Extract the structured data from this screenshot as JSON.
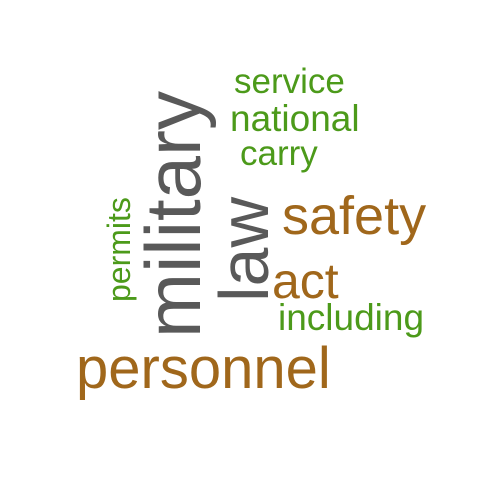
{
  "words": [
    {
      "text": "military",
      "color": "#595959",
      "orientation": "vertical"
    },
    {
      "text": "law",
      "color": "#595959",
      "orientation": "vertical"
    },
    {
      "text": "personnel",
      "color": "#a0671b",
      "orientation": "horizontal"
    },
    {
      "text": "safety",
      "color": "#a0671b",
      "orientation": "horizontal"
    },
    {
      "text": "act",
      "color": "#a0671b",
      "orientation": "horizontal"
    },
    {
      "text": "service",
      "color": "#4c9a1a",
      "orientation": "horizontal"
    },
    {
      "text": "national",
      "color": "#4c9a1a",
      "orientation": "horizontal"
    },
    {
      "text": "carry",
      "color": "#4c9a1a",
      "orientation": "horizontal"
    },
    {
      "text": "including",
      "color": "#4c9a1a",
      "orientation": "horizontal"
    },
    {
      "text": "permits",
      "color": "#4c9a1a",
      "orientation": "vertical"
    }
  ]
}
